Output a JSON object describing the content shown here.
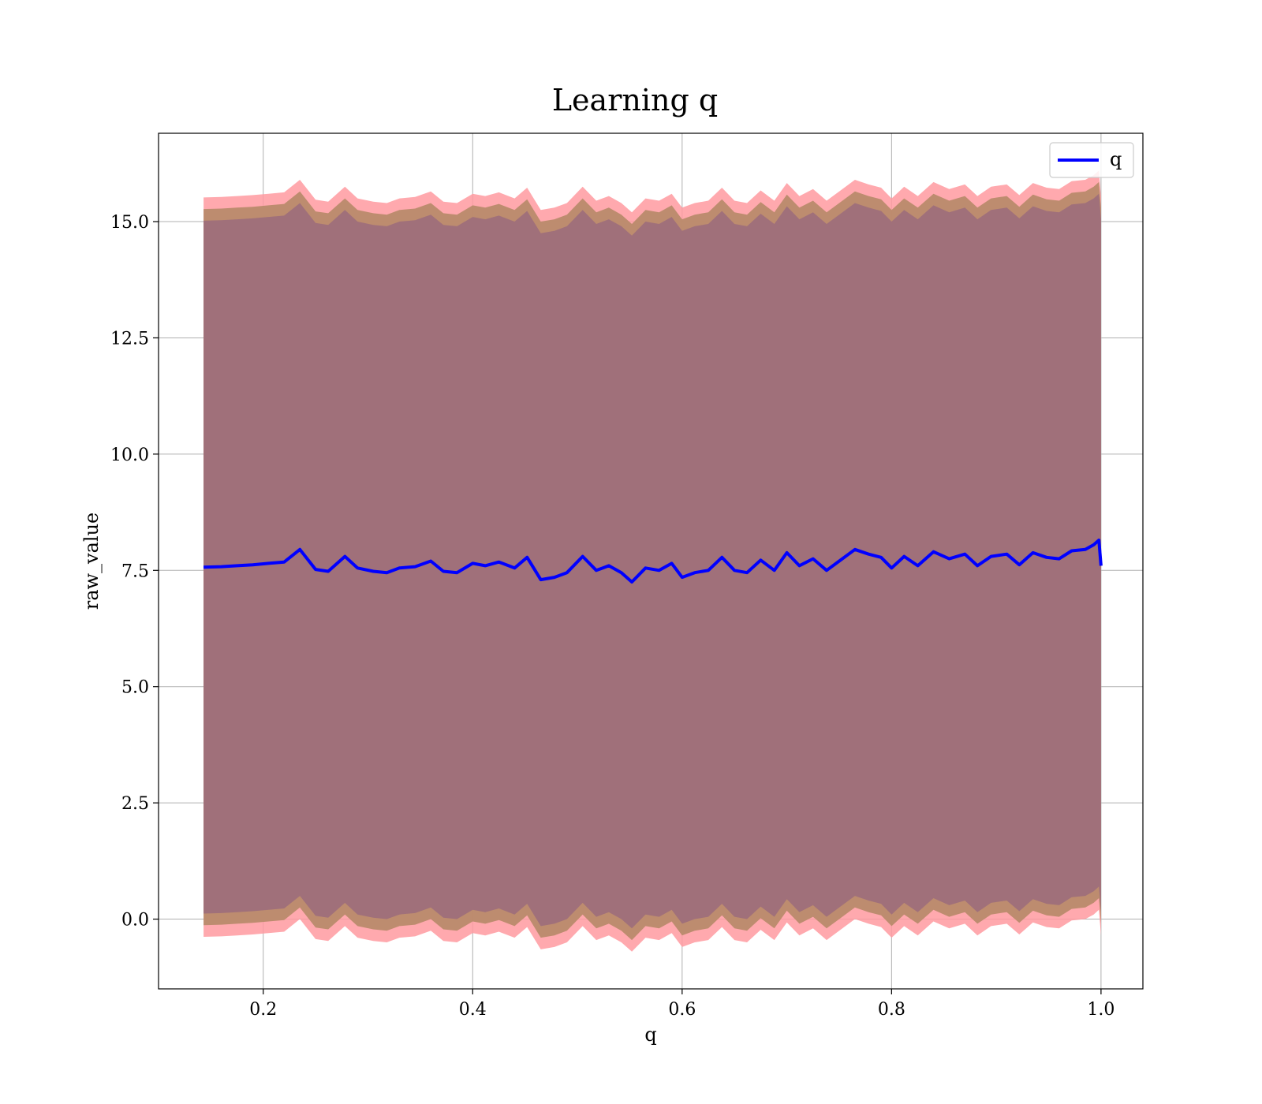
{
  "chart_data": {
    "type": "line",
    "title": "Learning q",
    "xlabel": "q",
    "ylabel": "raw_value",
    "xlim": [
      0.1,
      1.04
    ],
    "ylim": [
      -1.5,
      16.9
    ],
    "xticks": [
      0.2,
      0.4,
      0.6,
      0.8,
      1.0
    ],
    "xtick_labels": [
      "0.2",
      "0.4",
      "0.6",
      "0.8",
      "1.0"
    ],
    "yticks": [
      0.0,
      2.5,
      5.0,
      7.5,
      10.0,
      12.5,
      15.0
    ],
    "ytick_labels": [
      "0.0",
      "2.5",
      "5.0",
      "7.5",
      "10.0",
      "12.5",
      "15.0"
    ],
    "grid": true,
    "legend": {
      "position": "top-right",
      "entries": [
        "q"
      ]
    },
    "colors": {
      "line": "#0000ff",
      "band_outer": "#ff9aa0",
      "band_mid": "#b98a6b",
      "band_inner": "#a0707a",
      "grid": "#b0b0b0"
    },
    "bands": {
      "inner_halfwidth": 7.45,
      "mid_halfwidth": 7.7,
      "outer_halfwidth": 7.95
    },
    "series": [
      {
        "name": "q",
        "x": [
          0.143,
          0.16,
          0.175,
          0.19,
          0.205,
          0.22,
          0.235,
          0.25,
          0.262,
          0.278,
          0.29,
          0.305,
          0.318,
          0.33,
          0.345,
          0.36,
          0.372,
          0.385,
          0.4,
          0.412,
          0.425,
          0.44,
          0.452,
          0.465,
          0.478,
          0.49,
          0.505,
          0.518,
          0.53,
          0.542,
          0.552,
          0.565,
          0.578,
          0.59,
          0.6,
          0.612,
          0.625,
          0.638,
          0.65,
          0.662,
          0.675,
          0.688,
          0.7,
          0.712,
          0.725,
          0.738,
          0.75,
          0.765,
          0.778,
          0.79,
          0.8,
          0.812,
          0.825,
          0.84,
          0.855,
          0.87,
          0.882,
          0.895,
          0.91,
          0.922,
          0.935,
          0.948,
          0.96,
          0.972,
          0.985,
          0.993,
          0.998,
          1.0
        ],
        "y": [
          7.57,
          7.58,
          7.6,
          7.62,
          7.65,
          7.68,
          7.95,
          7.52,
          7.48,
          7.8,
          7.55,
          7.48,
          7.45,
          7.55,
          7.58,
          7.7,
          7.48,
          7.45,
          7.65,
          7.6,
          7.68,
          7.55,
          7.78,
          7.3,
          7.35,
          7.45,
          7.8,
          7.5,
          7.6,
          7.45,
          7.25,
          7.55,
          7.5,
          7.65,
          7.35,
          7.45,
          7.5,
          7.78,
          7.5,
          7.45,
          7.72,
          7.5,
          7.88,
          7.6,
          7.75,
          7.5,
          7.7,
          7.95,
          7.85,
          7.78,
          7.55,
          7.8,
          7.6,
          7.9,
          7.75,
          7.85,
          7.6,
          7.8,
          7.85,
          7.62,
          7.88,
          7.78,
          7.75,
          7.92,
          7.95,
          8.05,
          8.15,
          7.6
        ]
      }
    ]
  }
}
